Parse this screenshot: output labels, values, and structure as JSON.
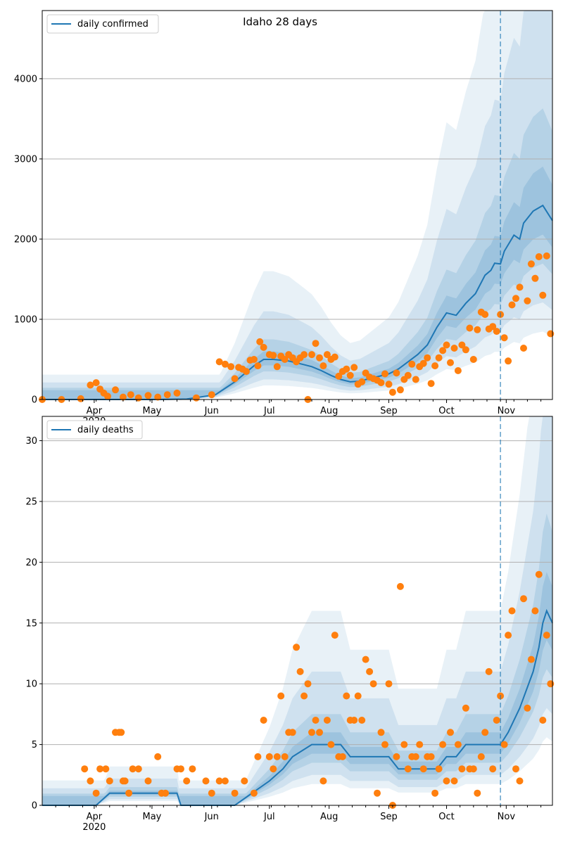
{
  "colors": {
    "line": "#1f77b4",
    "points": "#ff7f0e",
    "band": "#1f77b4",
    "grid": "#b0b0b0",
    "forecast_marker": "#1f77b4"
  },
  "chart_data": [
    {
      "type": "line",
      "title": "Idaho 28 days",
      "series": [
        {
          "name": "daily confirmed",
          "kind": "line",
          "x": [
            0,
            60,
            75,
            90,
            100,
            110,
            115,
            120,
            128,
            135,
            140,
            145,
            150,
            155,
            160,
            165,
            170,
            180,
            185,
            190,
            195,
            200,
            205,
            210,
            215,
            220,
            225,
            230,
            233,
            235,
            238,
            240,
            245,
            248,
            250,
            255,
            260,
            265
          ],
          "values": [
            0,
            0,
            5,
            60,
            220,
            420,
            500,
            500,
            480,
            440,
            410,
            360,
            300,
            250,
            220,
            230,
            260,
            320,
            380,
            470,
            560,
            680,
            900,
            1080,
            1050,
            1200,
            1320,
            1550,
            1610,
            1700,
            1690,
            1850,
            2050,
            2000,
            2200,
            2350,
            2420,
            2230
          ]
        },
        {
          "name": "observed",
          "kind": "points",
          "x": [
            0,
            10,
            20,
            25,
            28,
            30,
            32,
            34,
            38,
            42,
            46,
            50,
            55,
            60,
            65,
            70,
            80,
            88,
            92,
            95,
            98,
            100,
            102,
            104,
            106,
            108,
            110,
            112,
            113,
            115,
            118,
            120,
            122,
            124,
            126,
            128,
            130,
            132,
            134,
            136,
            138,
            140,
            142,
            144,
            146,
            148,
            150,
            152,
            154,
            156,
            158,
            160,
            162,
            164,
            166,
            168,
            170,
            172,
            174,
            176,
            178,
            180,
            182,
            184,
            186,
            188,
            190,
            192,
            194,
            196,
            198,
            200,
            202,
            204,
            206,
            208,
            210,
            212,
            214,
            216,
            218,
            220,
            222,
            224,
            226,
            228,
            230,
            232,
            234,
            236,
            238,
            240,
            242,
            244,
            246,
            248,
            250,
            252,
            254,
            256,
            258,
            260,
            262,
            264
          ],
          "values": [
            0,
            0,
            10,
            180,
            210,
            130,
            80,
            40,
            120,
            30,
            60,
            20,
            50,
            30,
            60,
            80,
            20,
            60,
            470,
            440,
            410,
            260,
            400,
            380,
            350,
            490,
            500,
            420,
            720,
            650,
            560,
            550,
            410,
            540,
            500,
            560,
            520,
            470,
            520,
            560,
            0,
            560,
            700,
            520,
            420,
            560,
            500,
            530,
            290,
            350,
            380,
            300,
            400,
            190,
            220,
            330,
            280,
            260,
            240,
            210,
            320,
            190,
            90,
            330,
            120,
            250,
            300,
            440,
            250,
            410,
            450,
            520,
            200,
            420,
            520,
            610,
            680,
            460,
            640,
            360,
            680,
            620,
            890,
            500,
            870,
            1090,
            1060,
            880,
            910,
            850,
            1060,
            770,
            480,
            1180,
            1260,
            1400,
            640,
            1230,
            1690,
            1510,
            1780,
            1300,
            1790,
            820
          ]
        },
        {
          "name": "forecast start",
          "kind": "vline",
          "x": 238
        }
      ],
      "x_tick_labels": [
        "Apr\n2020",
        "May",
        "Jun",
        "Jul",
        "Aug",
        "Sep",
        "Oct",
        "Nov"
      ],
      "x_tick_positions": [
        27,
        57,
        88,
        118,
        149,
        180,
        210,
        241
      ],
      "xlim": [
        0,
        265
      ],
      "y_ticks": [
        0,
        1000,
        2000,
        3000,
        4000
      ],
      "ylim": [
        0,
        4850
      ],
      "grid": "horizontal",
      "legend_placement": "top-left",
      "legend": [
        "daily confirmed"
      ]
    },
    {
      "type": "line",
      "series": [
        {
          "name": "daily deaths",
          "kind": "line",
          "x": [
            0,
            25,
            28,
            35,
            50,
            70,
            72,
            100,
            118,
            125,
            130,
            140,
            145,
            155,
            160,
            170,
            180,
            185,
            190,
            200,
            205,
            210,
            215,
            220,
            230,
            238,
            242,
            248,
            255,
            258,
            260,
            262,
            265
          ],
          "values": [
            0,
            0,
            0,
            1,
            1,
            1,
            0,
            0,
            2,
            3,
            4,
            5,
            5,
            5,
            4,
            4,
            4,
            3,
            3,
            3,
            3,
            4,
            4,
            5,
            5,
            5,
            6,
            8,
            11,
            13,
            15,
            16,
            15
          ]
        },
        {
          "name": "observed",
          "kind": "points",
          "x": [
            22,
            25,
            28,
            30,
            33,
            35,
            38,
            40,
            41,
            42,
            43,
            45,
            47,
            50,
            55,
            60,
            62,
            64,
            70,
            72,
            75,
            78,
            85,
            88,
            92,
            95,
            100,
            105,
            110,
            112,
            115,
            118,
            120,
            122,
            124,
            126,
            128,
            130,
            132,
            134,
            136,
            138,
            140,
            142,
            144,
            146,
            148,
            150,
            152,
            154,
            156,
            158,
            160,
            162,
            164,
            166,
            168,
            170,
            172,
            174,
            176,
            178,
            180,
            182,
            184,
            186,
            188,
            190,
            192,
            194,
            196,
            198,
            200,
            202,
            204,
            206,
            208,
            210,
            212,
            214,
            216,
            218,
            220,
            222,
            224,
            226,
            228,
            230,
            232,
            234,
            236,
            238,
            240,
            242,
            244,
            246,
            248,
            250,
            252,
            254,
            256,
            258,
            260,
            262,
            264
          ],
          "values": [
            3,
            2,
            1,
            3,
            3,
            2,
            6,
            6,
            6,
            2,
            2,
            1,
            3,
            3,
            2,
            4,
            1,
            1,
            3,
            3,
            2,
            3,
            2,
            1,
            2,
            2,
            1,
            2,
            1,
            4,
            7,
            4,
            3,
            4,
            9,
            4,
            6,
            6,
            13,
            11,
            9,
            10,
            6,
            7,
            6,
            2,
            7,
            5,
            14,
            4,
            4,
            9,
            7,
            7,
            9,
            7,
            12,
            11,
            10,
            1,
            6,
            5,
            10,
            0,
            4,
            18,
            5,
            3,
            4,
            4,
            5,
            3,
            4,
            4,
            1,
            3,
            5,
            2,
            6,
            2,
            5,
            3,
            8,
            3,
            3,
            1,
            4,
            6,
            11,
            3,
            7,
            9,
            5,
            14,
            16,
            3,
            2,
            17,
            8,
            12,
            16,
            19,
            7,
            14,
            10
          ]
        },
        {
          "name": "forecast start",
          "kind": "vline",
          "x": 238
        }
      ],
      "x_tick_labels": [
        "Apr\n2020",
        "May",
        "Jun",
        "Jul",
        "Aug",
        "Sep",
        "Oct",
        "Nov"
      ],
      "x_tick_positions": [
        27,
        57,
        88,
        118,
        149,
        180,
        210,
        241
      ],
      "xlim": [
        0,
        265
      ],
      "y_ticks": [
        0,
        5,
        10,
        15,
        20,
        25,
        30
      ],
      "ylim": [
        0,
        32
      ],
      "grid": "horizontal",
      "legend_placement": "top-left",
      "legend": [
        "daily deaths"
      ]
    }
  ]
}
